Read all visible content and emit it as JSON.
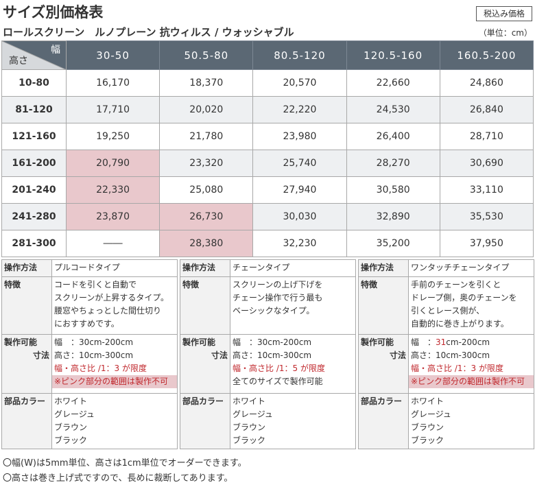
{
  "header": {
    "title": "サイズ別価格表",
    "tax_badge": "税込み価格",
    "subtitle": "ロールスクリーン　ルノプレーン 抗ウィルス / ウォッシャブル",
    "unit": "（単位：cm）"
  },
  "price_table": {
    "corner_width_label": "幅",
    "corner_height_label": "高さ",
    "columns": [
      "30-50",
      "50.5-80",
      "80.5-120",
      "120.5-160",
      "160.5-200"
    ],
    "rows": [
      {
        "height": "10-80",
        "prices": [
          "16,170",
          "18,370",
          "20,570",
          "22,660",
          "24,860"
        ]
      },
      {
        "height": "81-120",
        "prices": [
          "17,710",
          "20,020",
          "22,220",
          "24,530",
          "26,840"
        ]
      },
      {
        "height": "121-160",
        "prices": [
          "19,250",
          "21,780",
          "23,980",
          "26,400",
          "28,710"
        ]
      },
      {
        "height": "161-200",
        "prices": [
          "20,790",
          "23,320",
          "25,740",
          "28,270",
          "30,690"
        ]
      },
      {
        "height": "201-240",
        "prices": [
          "22,330",
          "25,080",
          "27,940",
          "30,580",
          "33,110"
        ]
      },
      {
        "height": "241-280",
        "prices": [
          "23,870",
          "26,730",
          "30,030",
          "32,890",
          "35,530"
        ]
      },
      {
        "height": "281-300",
        "prices": [
          "――",
          "28,380",
          "32,230",
          "35,200",
          "37,950"
        ]
      }
    ],
    "highlight_color": "#e9c8cc",
    "accent_red": "#c0282d",
    "header_color": "#5b6874"
  },
  "specs": [
    {
      "method_label": "操作方法",
      "method": "プルコードタイプ",
      "feature_label": "特徴",
      "feature_lines": [
        "コードを引くと自動で",
        "スクリーンが上昇するタイプ。",
        "腰窓やちょっとした間仕切り",
        "におすすめです。"
      ],
      "size_label_1": "製作可能",
      "size_label_2": "寸法",
      "size_width": "幅　：30cm-200cm",
      "size_height": "高さ：10cm-300cm",
      "ratio": "幅・高さ比 /1：3 が限度",
      "note": "※ピンク部分の範囲は製作不可",
      "color_label": "部品カラー",
      "colors": [
        "ホワイト",
        "グレージュ",
        "ブラウン",
        "ブラック"
      ]
    },
    {
      "method_label": "操作方法",
      "method": "チェーンタイプ",
      "feature_label": "特徴",
      "feature_lines": [
        "スクリーンの上げ下げを",
        "チェーン操作で行う最も",
        "ベーシックなタイプ。"
      ],
      "size_label_1": "製作可能",
      "size_label_2": "寸法",
      "size_width": "幅　：30cm-200cm",
      "size_height": "高さ：10cm-300cm",
      "ratio": "幅・高さ比 /1：5 が限度",
      "note": "全てのサイズで製作可能",
      "color_label": "部品カラー",
      "colors": [
        "ホワイト",
        "グレージュ",
        "ブラウン",
        "ブラック"
      ]
    },
    {
      "method_label": "操作方法",
      "method": "ワンタッチチェーンタイプ",
      "feature_label": "特徴",
      "feature_lines": [
        "手前のチェーンを引くと",
        "ドレープ側，奥のチェーンを",
        "引くとレース側が、",
        "自動的に巻き上がります。"
      ],
      "size_label_1": "製作可能",
      "size_label_2": "寸法",
      "size_width_prefix": "幅　：",
      "size_width_red": "31",
      "size_width_suffix": "cm-200cm",
      "size_height": "高さ：10cm-300cm",
      "ratio": "幅・高さ比 /1：3 が限度",
      "note": "※ピンク部分の範囲は製作不可",
      "color_label": "部品カラー",
      "colors": [
        "ホワイト",
        "グレージュ",
        "ブラウン",
        "ブラック"
      ]
    }
  ],
  "notes": [
    "〇幅(W)は5mm単位、高さは1cm単位でオーダーできます。",
    "〇高さは巻き上げ式ですので、長めに裁断してあります。"
  ]
}
